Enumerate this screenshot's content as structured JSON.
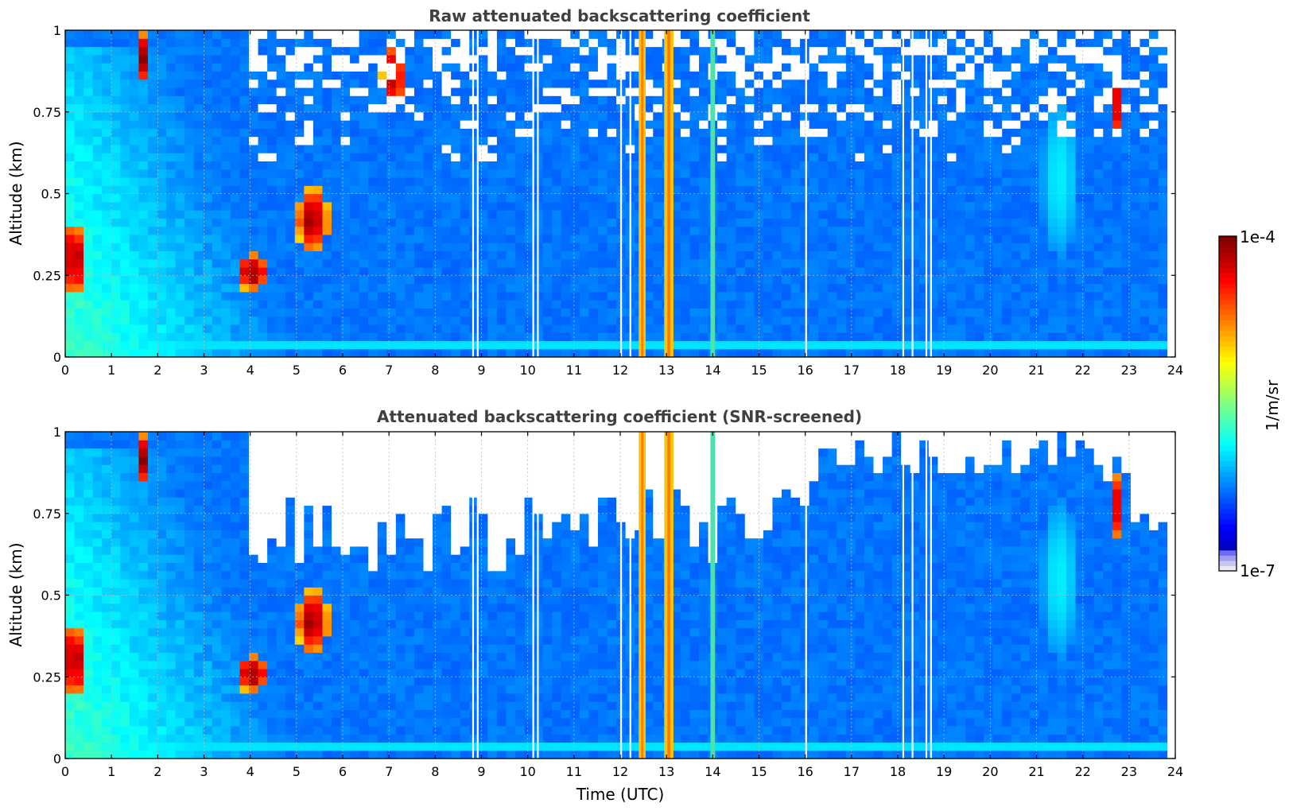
{
  "colorbar": {
    "max_label": "1e-4",
    "min_label": "1e-7",
    "unit_label": "1/m/sr",
    "vmin": 1e-07,
    "vmax": 0.0001,
    "scale": "log",
    "colormap": "jet"
  },
  "chart_data": [
    {
      "type": "heatmap",
      "title": "Raw attenuated backscattering coefficient",
      "xlabel": "",
      "ylabel": "Altitude (km)",
      "xlim": [
        0,
        24
      ],
      "ylim": [
        0,
        1
      ],
      "x_ticks": [
        "0",
        "1",
        "2",
        "3",
        "4",
        "5",
        "6",
        "7",
        "8",
        "9",
        "10",
        "11",
        "12",
        "13",
        "14",
        "15",
        "16",
        "17",
        "18",
        "19",
        "20",
        "21",
        "22",
        "23",
        "24"
      ],
      "y_ticks": [
        "0",
        "0.25",
        "0.5",
        "0.75",
        "1"
      ],
      "grid": true,
      "bright_bands": [
        {
          "time_start": 12.4,
          "time_end": 12.55,
          "level": "yellow-orange"
        },
        {
          "time_start": 12.95,
          "time_end": 13.15,
          "level": "yellow-orange"
        },
        {
          "time_start": 13.95,
          "time_end": 14.05,
          "level": "cyan-green"
        }
      ],
      "features": [
        {
          "name": "aerosol layer",
          "time_start": 0.0,
          "time_end": 6.0,
          "alt_start": 0.05,
          "alt_end": 0.95
        },
        {
          "name": "strong return",
          "time_start": 3.6,
          "time_end": 4.3,
          "alt_start": 0.18,
          "alt_end": 0.35
        },
        {
          "name": "strong return",
          "time_start": 5.0,
          "time_end": 5.8,
          "alt_start": 0.3,
          "alt_end": 0.55
        },
        {
          "name": "strong return",
          "time_start": 6.8,
          "time_end": 7.4,
          "alt_start": 0.75,
          "alt_end": 1.0
        },
        {
          "name": "strong return",
          "time_start": 22.6,
          "time_end": 22.8,
          "alt_start": 0.65,
          "alt_end": 0.9
        }
      ]
    },
    {
      "type": "heatmap",
      "title": "Attenuated backscattering coefficient (SNR-screened)",
      "xlabel": "Time (UTC)",
      "ylabel": "Altitude (km)",
      "xlim": [
        0,
        24
      ],
      "ylim": [
        0,
        1
      ],
      "x_ticks": [
        "0",
        "1",
        "2",
        "3",
        "4",
        "5",
        "6",
        "7",
        "8",
        "9",
        "10",
        "11",
        "12",
        "13",
        "14",
        "15",
        "16",
        "17",
        "18",
        "19",
        "20",
        "21",
        "22",
        "23",
        "24"
      ],
      "y_ticks": [
        "0",
        "0.25",
        "0.5",
        "0.75",
        "1"
      ],
      "grid": true,
      "bright_bands": [
        {
          "time_start": 12.4,
          "time_end": 12.55,
          "level": "yellow-orange"
        },
        {
          "time_start": 12.95,
          "time_end": 13.15,
          "level": "yellow-orange"
        },
        {
          "time_start": 13.95,
          "time_end": 14.05,
          "level": "cyan-green"
        }
      ]
    }
  ]
}
